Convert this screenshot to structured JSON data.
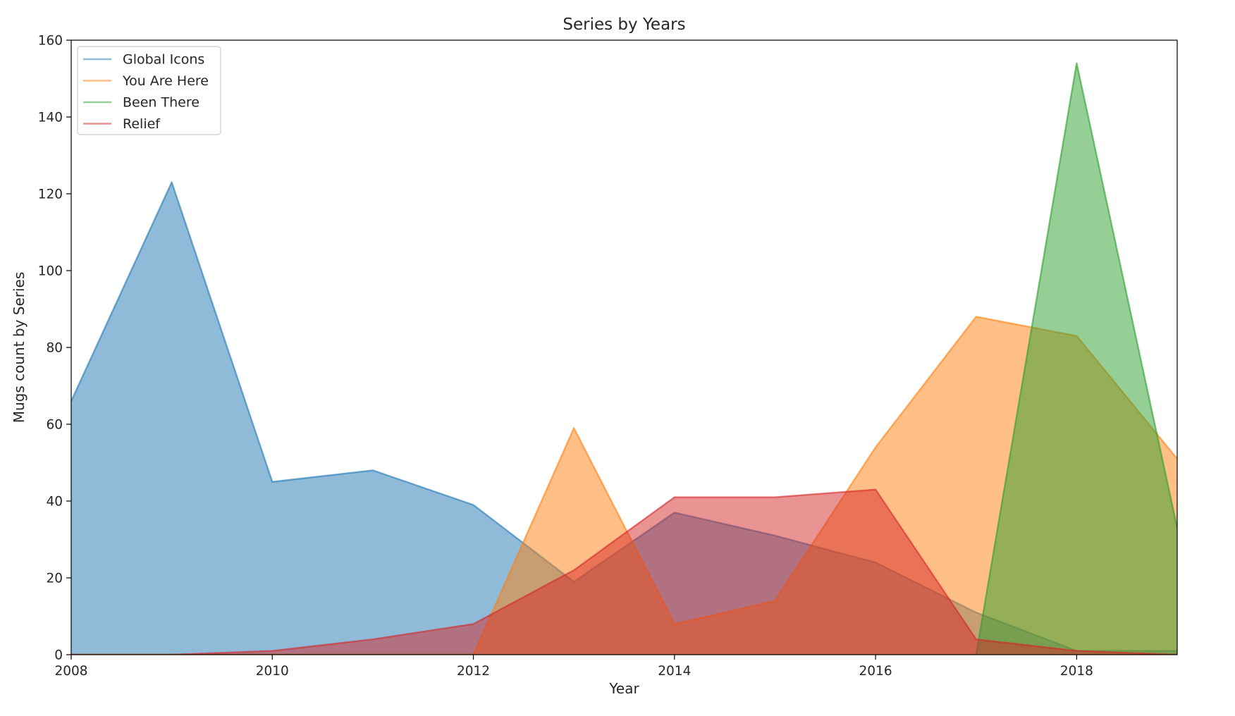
{
  "chart_data": {
    "type": "area",
    "title": "Series by Years",
    "xlabel": "Year",
    "ylabel": "Mugs count by Series",
    "xlim": [
      2008,
      2019
    ],
    "ylim": [
      0,
      160
    ],
    "xticks": [
      "2008",
      "2010",
      "2012",
      "2014",
      "2016",
      "2018"
    ],
    "yticks": [
      "0",
      "20",
      "40",
      "60",
      "80",
      "100",
      "120",
      "140",
      "160"
    ],
    "grid": false,
    "legend_position": "top-left",
    "x": [
      2008,
      2009,
      2010,
      2011,
      2012,
      2013,
      2014,
      2015,
      2016,
      2017,
      2018,
      2019
    ],
    "series": [
      {
        "name": "Global Icons",
        "color": "#1f77b4",
        "values": [
          66,
          123,
          45,
          48,
          39,
          19,
          37,
          31,
          24,
          11,
          1,
          1
        ]
      },
      {
        "name": "You Are Here",
        "color": "#ff7f0e",
        "values": [
          0,
          0,
          0,
          0,
          0,
          59,
          8,
          14,
          54,
          88,
          83,
          51
        ]
      },
      {
        "name": "Been There",
        "color": "#2ca02c",
        "values": [
          0,
          0,
          0,
          0,
          0,
          0,
          0,
          0,
          0,
          0,
          154,
          33
        ]
      },
      {
        "name": "Relief",
        "color": "#d62728",
        "values": [
          0,
          0,
          1,
          4,
          8,
          22,
          41,
          41,
          43,
          4,
          1,
          0
        ]
      }
    ]
  }
}
